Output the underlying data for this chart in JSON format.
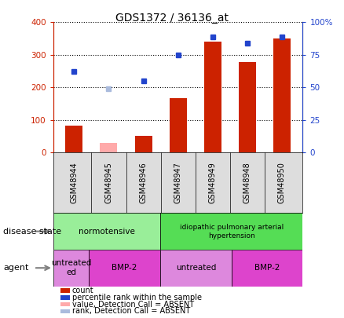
{
  "title": "GDS1372 / 36136_at",
  "samples": [
    "GSM48944",
    "GSM48945",
    "GSM48946",
    "GSM48947",
    "GSM48949",
    "GSM48948",
    "GSM48950"
  ],
  "count_values": [
    82,
    null,
    52,
    168,
    340,
    278,
    350
  ],
  "count_absent": [
    null,
    30,
    null,
    null,
    null,
    null,
    null
  ],
  "rank_values": [
    62,
    null,
    55,
    75,
    89,
    84,
    89
  ],
  "rank_absent": [
    null,
    49,
    null,
    null,
    null,
    null,
    null
  ],
  "count_color": "#cc2200",
  "count_absent_color": "#ffaaaa",
  "rank_color": "#2244cc",
  "rank_absent_color": "#aabbdd",
  "ylim_left": [
    0,
    400
  ],
  "ylim_right": [
    0,
    100
  ],
  "ytick_labels_left": [
    "0",
    "100",
    "200",
    "300",
    "400"
  ],
  "ytick_labels_right": [
    "0",
    "25",
    "50",
    "75",
    "100%"
  ],
  "disease_state_normotensive_color": "#99ee99",
  "disease_state_iph_color": "#55dd55",
  "agent_untreated_color": "#dd88dd",
  "agent_bmp2_color": "#dd44cc",
  "disease_label": "disease state",
  "agent_label": "agent",
  "legend_labels": [
    "count",
    "percentile rank within the sample",
    "value, Detection Call = ABSENT",
    "rank, Detection Call = ABSENT"
  ],
  "legend_colors": [
    "#cc2200",
    "#2244cc",
    "#ffaaaa",
    "#aabbdd"
  ]
}
